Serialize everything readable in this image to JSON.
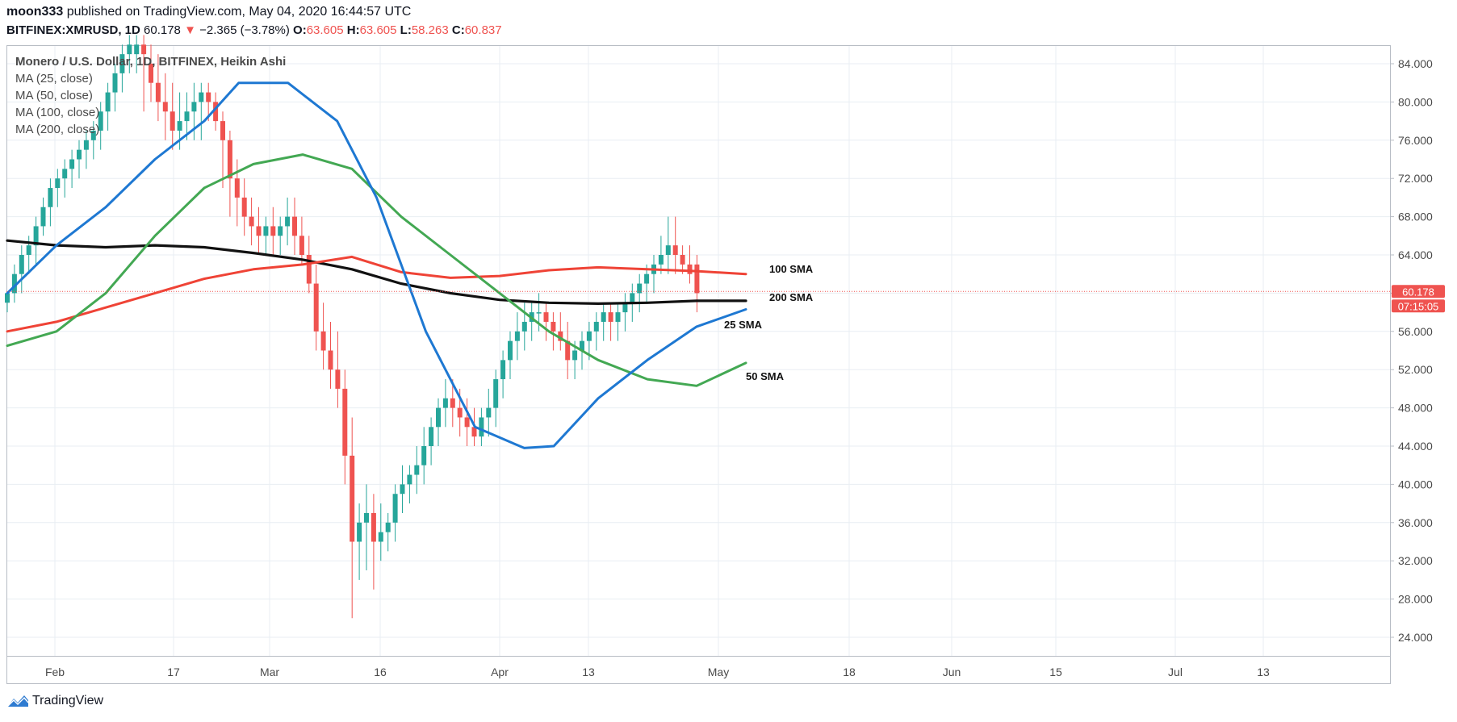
{
  "header": {
    "author": "moon333",
    "published": "published on TradingView.com, May 04, 2020 16:44:57 UTC",
    "symbol": "BITFINEX:XMRUSD, 1D",
    "price": "60.178",
    "change": "−2.365 (−3.78%)",
    "o_label": "O:",
    "o_value": "63.605",
    "h_label": "H:",
    "h_value": "63.605",
    "l_label": "L:",
    "l_value": "58.263",
    "c_label": "C:",
    "c_value": "60.837"
  },
  "legend": {
    "title": "Monero / U.S. Dollar, 1D, BITFINEX, Heikin Ashi",
    "items": [
      "MA (25, close)",
      "MA (50, close)",
      "MA (100, close)",
      "MA (200, close)"
    ]
  },
  "footer": {
    "brand": "TradingView"
  },
  "colors": {
    "up": "#26a69a",
    "down": "#ef5350",
    "sma25": "#1e78d2",
    "sma50": "#43a853",
    "sma100": "#ef4336",
    "sma200": "#111111",
    "grid": "#e8eef3"
  },
  "chart_data": {
    "type": "candlestick",
    "y_ticks": [
      "84.000",
      "80.000",
      "76.000",
      "72.000",
      "68.000",
      "64.000",
      "60.000",
      "56.000",
      "52.000",
      "48.000",
      "44.000",
      "40.000",
      "36.000",
      "32.000",
      "28.000",
      "24.000"
    ],
    "ylim": [
      22,
      86
    ],
    "x_ticks": [
      "Feb",
      "17",
      "Mar",
      "16",
      "Apr",
      "13",
      "May",
      "18",
      "Jun",
      "15",
      "Jul",
      "13"
    ],
    "price_label": "60.178",
    "countdown_label": "07:15:05",
    "annotations": [
      "100 SMA",
      "200 SMA",
      "25 SMA",
      "50 SMA"
    ],
    "candles": [
      [
        59,
        60,
        58,
        60
      ],
      [
        60,
        63,
        59,
        62
      ],
      [
        62,
        65,
        60,
        64
      ],
      [
        64,
        66,
        62,
        65
      ],
      [
        65,
        68,
        63,
        67
      ],
      [
        67,
        70,
        66,
        69
      ],
      [
        69,
        72,
        67,
        71
      ],
      [
        71,
        73,
        69,
        72
      ],
      [
        72,
        74,
        70,
        73
      ],
      [
        73,
        75,
        71,
        74
      ],
      [
        74,
        76,
        72,
        75
      ],
      [
        75,
        77,
        73,
        76
      ],
      [
        76,
        78,
        74,
        77
      ],
      [
        77,
        80,
        75,
        79
      ],
      [
        79,
        82,
        77,
        81
      ],
      [
        81,
        84,
        79,
        83
      ],
      [
        83,
        86,
        81,
        85
      ],
      [
        85,
        87,
        83,
        86
      ],
      [
        85,
        87,
        83,
        86
      ],
      [
        86,
        87,
        79,
        85
      ],
      [
        84,
        86,
        80,
        82
      ],
      [
        82,
        85,
        78,
        80
      ],
      [
        80,
        83,
        76,
        79
      ],
      [
        79,
        82,
        75,
        77
      ],
      [
        77,
        81,
        75,
        78
      ],
      [
        78,
        81,
        76,
        79
      ],
      [
        79,
        82,
        76,
        80
      ],
      [
        80,
        82,
        76,
        81
      ],
      [
        81,
        82,
        78,
        80
      ],
      [
        80,
        81,
        77,
        78
      ],
      [
        78,
        79,
        71,
        76
      ],
      [
        76,
        77,
        68,
        72
      ],
      [
        72,
        74,
        67,
        70
      ],
      [
        70,
        72,
        66,
        68
      ],
      [
        68,
        70,
        65,
        67
      ],
      [
        67,
        69,
        64,
        66
      ],
      [
        66,
        68,
        64,
        67
      ],
      [
        67,
        69,
        64,
        66
      ],
      [
        66,
        68,
        64,
        67
      ],
      [
        67,
        70,
        65,
        68
      ],
      [
        68,
        70,
        64,
        66
      ],
      [
        66,
        68,
        63,
        64
      ],
      [
        64,
        66,
        60,
        61
      ],
      [
        61,
        63,
        54,
        56
      ],
      [
        56,
        59,
        52,
        54
      ],
      [
        54,
        57,
        50,
        52
      ],
      [
        52,
        56,
        48,
        50
      ],
      [
        50,
        52,
        40,
        43
      ],
      [
        43,
        47,
        26,
        34
      ],
      [
        34,
        38,
        30,
        36
      ],
      [
        36,
        40,
        31,
        37
      ],
      [
        37,
        39,
        29,
        34
      ],
      [
        34,
        38,
        32,
        35
      ],
      [
        35,
        37,
        33,
        36
      ],
      [
        36,
        40,
        34,
        39
      ],
      [
        39,
        42,
        37,
        40
      ],
      [
        40,
        42,
        38,
        41
      ],
      [
        41,
        44,
        39,
        42
      ],
      [
        42,
        46,
        40,
        44
      ],
      [
        44,
        47,
        42,
        46
      ],
      [
        46,
        49,
        44,
        48
      ],
      [
        48,
        51,
        46,
        49
      ],
      [
        49,
        51,
        46,
        48
      ],
      [
        48,
        50,
        45,
        47
      ],
      [
        47,
        49,
        44,
        46
      ],
      [
        46,
        48,
        44,
        45
      ],
      [
        45,
        48,
        44,
        47
      ],
      [
        47,
        50,
        45,
        48
      ],
      [
        48,
        52,
        46,
        51
      ],
      [
        51,
        54,
        49,
        53
      ],
      [
        53,
        56,
        51,
        55
      ],
      [
        55,
        58,
        53,
        56
      ],
      [
        56,
        59,
        54,
        57
      ],
      [
        57,
        59,
        55,
        58
      ],
      [
        58,
        60,
        56,
        58
      ],
      [
        58,
        59,
        55,
        57
      ],
      [
        57,
        58,
        54,
        56
      ],
      [
        56,
        58,
        54,
        55
      ],
      [
        55,
        57,
        51,
        53
      ],
      [
        53,
        55,
        51,
        54
      ],
      [
        54,
        56,
        52,
        55
      ],
      [
        55,
        57,
        53,
        56
      ],
      [
        56,
        58,
        54,
        57
      ],
      [
        57,
        59,
        55,
        58
      ],
      [
        58,
        59,
        55,
        57
      ],
      [
        57,
        59,
        55,
        58
      ],
      [
        58,
        60,
        56,
        59
      ],
      [
        59,
        61,
        57,
        60
      ],
      [
        60,
        62,
        58,
        61
      ],
      [
        61,
        63,
        59,
        62
      ],
      [
        62,
        64,
        60,
        63
      ],
      [
        63,
        66,
        62,
        64
      ],
      [
        64,
        68,
        62,
        65
      ],
      [
        65,
        68,
        62,
        64
      ],
      [
        64,
        65,
        62,
        63
      ],
      [
        63,
        65,
        61,
        62
      ],
      [
        63,
        64,
        58,
        60
      ]
    ],
    "sma25": [
      [
        0,
        60
      ],
      [
        10,
        65
      ],
      [
        20,
        69
      ],
      [
        30,
        74
      ],
      [
        40,
        78
      ],
      [
        47,
        82
      ],
      [
        57,
        82
      ],
      [
        67,
        78
      ],
      [
        75,
        70
      ],
      [
        85,
        56
      ],
      [
        95,
        46
      ],
      [
        105,
        43.8
      ],
      [
        111,
        44
      ],
      [
        120,
        49
      ],
      [
        130,
        53
      ],
      [
        140,
        56.5
      ],
      [
        150,
        58.3
      ]
    ],
    "sma50": [
      [
        0,
        54.5
      ],
      [
        10,
        56
      ],
      [
        20,
        60
      ],
      [
        30,
        66
      ],
      [
        40,
        71
      ],
      [
        50,
        73.5
      ],
      [
        60,
        74.5
      ],
      [
        70,
        73
      ],
      [
        80,
        68
      ],
      [
        90,
        64
      ],
      [
        100,
        60
      ],
      [
        110,
        56
      ],
      [
        120,
        53
      ],
      [
        130,
        51
      ],
      [
        140,
        50.3
      ],
      [
        150,
        52.7
      ]
    ],
    "sma100": [
      [
        0,
        56
      ],
      [
        10,
        57
      ],
      [
        20,
        58.5
      ],
      [
        30,
        60
      ],
      [
        40,
        61.5
      ],
      [
        50,
        62.5
      ],
      [
        60,
        63
      ],
      [
        70,
        63.8
      ],
      [
        80,
        62.2
      ],
      [
        90,
        61.6
      ],
      [
        100,
        61.8
      ],
      [
        110,
        62.4
      ],
      [
        120,
        62.7
      ],
      [
        130,
        62.5
      ],
      [
        140,
        62.3
      ],
      [
        150,
        62
      ]
    ],
    "sma200": [
      [
        0,
        65.5
      ],
      [
        10,
        65
      ],
      [
        20,
        64.8
      ],
      [
        30,
        65
      ],
      [
        40,
        64.8
      ],
      [
        50,
        64.2
      ],
      [
        60,
        63.5
      ],
      [
        70,
        62.5
      ],
      [
        80,
        61
      ],
      [
        90,
        60
      ],
      [
        100,
        59.3
      ],
      [
        110,
        59
      ],
      [
        120,
        58.9
      ],
      [
        130,
        59
      ],
      [
        140,
        59.2
      ],
      [
        150,
        59.2
      ]
    ]
  }
}
